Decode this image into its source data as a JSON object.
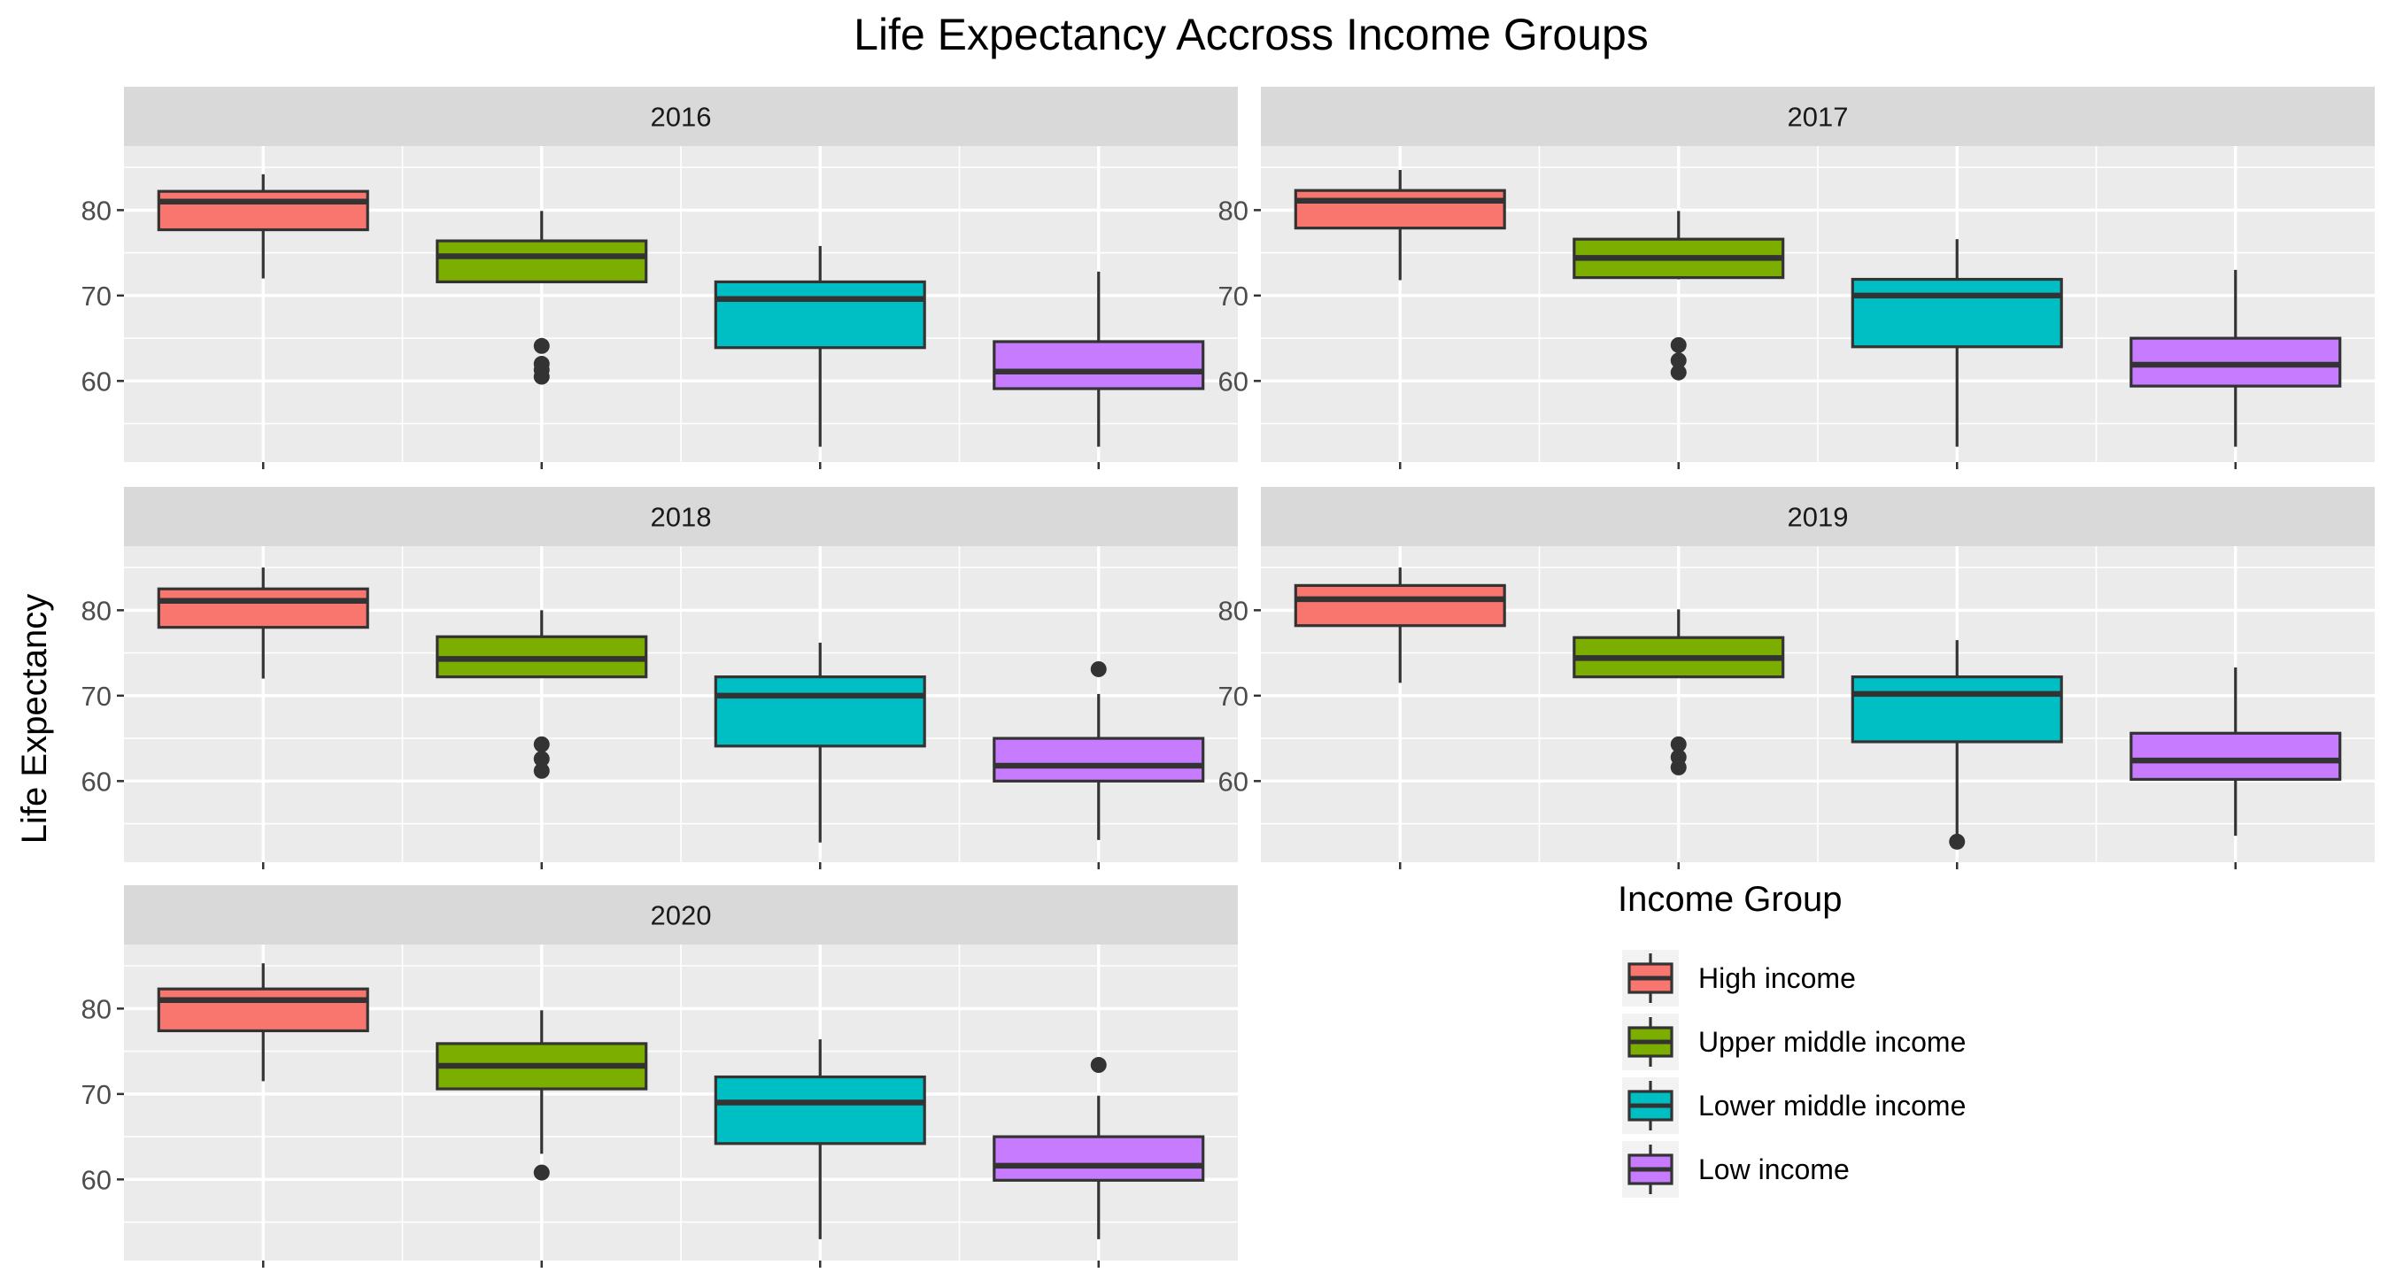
{
  "chart_data": {
    "type": "boxplot",
    "title": "Life Expectancy Accross Income Groups",
    "xlabel": "",
    "ylabel": "Life Expectancy",
    "ylim": [
      50.5,
      87.5
    ],
    "yticks": [
      60,
      70,
      80
    ],
    "grid": true,
    "legend_position": "right",
    "legend": {
      "title": "Income Group",
      "entries": [
        {
          "label": "High income",
          "color": "#F8766D"
        },
        {
          "label": "Upper middle income",
          "color": "#7CAE00"
        },
        {
          "label": "Lower middle income",
          "color": "#00BFC4"
        },
        {
          "label": "Low income",
          "color": "#C77CFF"
        }
      ]
    },
    "panels": [
      {
        "label": "2016",
        "boxes": [
          {
            "group": "High income",
            "min": 72.0,
            "q1": 77.7,
            "median": 81.0,
            "q3": 82.2,
            "max": 84.2,
            "outliers": []
          },
          {
            "group": "Upper middle income",
            "min": 71.6,
            "q1": 71.6,
            "median": 74.6,
            "q3": 76.4,
            "max": 79.9,
            "outliers": [
              64.1,
              62.0,
              61.3,
              60.5
            ]
          },
          {
            "group": "Lower middle income",
            "min": 52.3,
            "q1": 63.9,
            "median": 69.6,
            "q3": 71.6,
            "max": 75.8,
            "outliers": []
          },
          {
            "group": "Low income",
            "min": 52.3,
            "q1": 59.1,
            "median": 61.1,
            "q3": 64.6,
            "max": 72.8,
            "outliers": []
          }
        ]
      },
      {
        "label": "2017",
        "boxes": [
          {
            "group": "High income",
            "min": 71.8,
            "q1": 77.9,
            "median": 81.1,
            "q3": 82.3,
            "max": 84.7,
            "outliers": []
          },
          {
            "group": "Upper middle income",
            "min": 71.9,
            "q1": 72.1,
            "median": 74.4,
            "q3": 76.6,
            "max": 79.9,
            "outliers": [
              64.2,
              62.4,
              61.0
            ]
          },
          {
            "group": "Lower middle income",
            "min": 52.3,
            "q1": 64.0,
            "median": 70.0,
            "q3": 71.9,
            "max": 76.6,
            "outliers": []
          },
          {
            "group": "Low income",
            "min": 52.3,
            "q1": 59.4,
            "median": 61.9,
            "q3": 65.0,
            "max": 73.0,
            "outliers": []
          }
        ]
      },
      {
        "label": "2018",
        "boxes": [
          {
            "group": "High income",
            "min": 72.0,
            "q1": 78.0,
            "median": 81.1,
            "q3": 82.5,
            "max": 85.0,
            "outliers": []
          },
          {
            "group": "Upper middle income",
            "min": 72.1,
            "q1": 72.2,
            "median": 74.3,
            "q3": 76.9,
            "max": 80.0,
            "outliers": [
              64.3,
              62.6,
              61.2
            ]
          },
          {
            "group": "Lower middle income",
            "min": 52.8,
            "q1": 64.1,
            "median": 70.0,
            "q3": 72.2,
            "max": 76.2,
            "outliers": []
          },
          {
            "group": "Low income",
            "min": 53.1,
            "q1": 60.0,
            "median": 61.8,
            "q3": 65.0,
            "max": 70.2,
            "outliers": [
              73.1
            ]
          }
        ]
      },
      {
        "label": "2019",
        "boxes": [
          {
            "group": "High income",
            "min": 71.5,
            "q1": 78.2,
            "median": 81.3,
            "q3": 82.9,
            "max": 85.0,
            "outliers": []
          },
          {
            "group": "Upper middle income",
            "min": 72.1,
            "q1": 72.2,
            "median": 74.4,
            "q3": 76.8,
            "max": 80.1,
            "outliers": [
              64.3,
              62.8,
              61.6
            ]
          },
          {
            "group": "Lower middle income",
            "min": 53.2,
            "q1": 64.6,
            "median": 70.2,
            "q3": 72.2,
            "max": 76.5,
            "outliers": [
              52.9
            ]
          },
          {
            "group": "Low income",
            "min": 53.6,
            "q1": 60.2,
            "median": 62.4,
            "q3": 65.6,
            "max": 73.3,
            "outliers": []
          }
        ]
      },
      {
        "label": "2020",
        "boxes": [
          {
            "group": "High income",
            "min": 71.5,
            "q1": 77.4,
            "median": 81.0,
            "q3": 82.3,
            "max": 85.3,
            "outliers": []
          },
          {
            "group": "Upper middle income",
            "min": 63.0,
            "q1": 70.6,
            "median": 73.3,
            "q3": 75.9,
            "max": 79.8,
            "outliers": [
              60.8
            ]
          },
          {
            "group": "Lower middle income",
            "min": 53.0,
            "q1": 64.2,
            "median": 69.0,
            "q3": 72.0,
            "max": 76.4,
            "outliers": []
          },
          {
            "group": "Low income",
            "min": 53.0,
            "q1": 59.9,
            "median": 61.6,
            "q3": 65.0,
            "max": 69.8,
            "outliers": [
              73.4
            ]
          }
        ]
      }
    ]
  }
}
